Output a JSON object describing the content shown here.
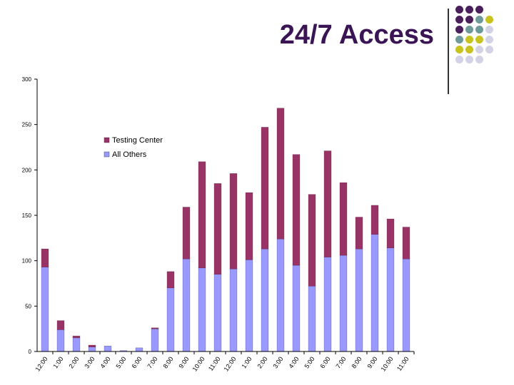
{
  "slide": {
    "title": "24/7 Access"
  },
  "decoration": {
    "dot_colors": {
      "purple": "#4a1f5c",
      "teal": "#6f9a9a",
      "yellow": "#c8c31e",
      "lavender": "#d2d2e6"
    },
    "dot_pattern": [
      [
        "purple",
        "purple",
        "purple",
        null
      ],
      [
        "purple",
        "purple",
        "teal",
        "yellow"
      ],
      [
        "purple",
        "teal",
        "teal",
        "lavender"
      ],
      [
        "teal",
        "yellow",
        "yellow",
        "lavender"
      ],
      [
        "yellow",
        "yellow",
        "lavender",
        "lavender"
      ],
      [
        "lavender",
        "lavender",
        "lavender",
        null
      ]
    ]
  },
  "chart_data": {
    "type": "bar",
    "stacked": true,
    "title": "",
    "xlabel": "",
    "ylabel": "",
    "ylim": [
      0,
      300
    ],
    "yticks": [
      0,
      50,
      100,
      150,
      200,
      250,
      300
    ],
    "grid": false,
    "legend_position": "upper-left inside plot",
    "categories": [
      "12:00",
      "1:00",
      "2:00",
      "3:00",
      "4:00",
      "5:00",
      "6:00",
      "7:00",
      "8:00",
      "9:00",
      "10:00",
      "11:00",
      "12:00",
      "1:00",
      "2:00",
      "3:00",
      "4:00",
      "5:00",
      "6:00",
      "7:00",
      "8:00",
      "9:00",
      "10:00",
      "11:00"
    ],
    "series": [
      {
        "name": "All Others",
        "color": "#9999ff",
        "values": [
          93,
          24,
          15,
          5,
          6,
          1,
          4,
          25,
          70,
          102,
          92,
          85,
          91,
          101,
          113,
          124,
          95,
          72,
          104,
          106,
          113,
          129,
          114,
          102
        ]
      },
      {
        "name": "Testing Center",
        "color": "#993366",
        "values": [
          20,
          10,
          2,
          2,
          0,
          0,
          0,
          1,
          18,
          57,
          117,
          100,
          105,
          74,
          134,
          144,
          122,
          101,
          117,
          80,
          35,
          32,
          32,
          35
        ]
      }
    ],
    "legend_order": [
      "Testing Center",
      "All Others"
    ]
  }
}
